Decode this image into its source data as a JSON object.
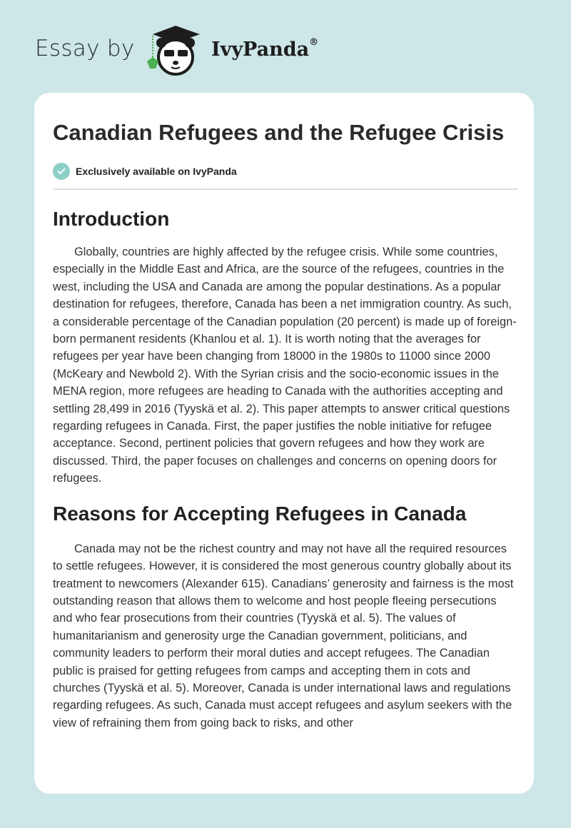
{
  "header": {
    "prefix": "Essay by",
    "brand": "IvyPanda",
    "registered": "®",
    "logo_icon": "panda-graduate-icon"
  },
  "article": {
    "title": "Canadian Refugees and the Refugee Crisis",
    "badge": "Exclusively available on IvyPanda",
    "badge_icon": "check-circle-icon",
    "sections": [
      {
        "heading": "Introduction",
        "text": "Globally, countries are highly affected by the refugee crisis. While some countries, especially in the Middle East and Africa, are the source of the refugees, countries in the west, including the USA and Canada are among the popular destinations. As a popular destination for refugees, therefore, Canada has been a net immigration country. As such, a considerable percentage of the Canadian population (20 percent) is made up of foreign-born permanent residents (Khanlou et al. 1). It is worth noting that the averages for refugees per year have been changing from 18000 in the 1980s to 11000 since 2000 (McKeary and Newbold 2). With the Syrian crisis and the socio-economic issues in the MENA region, more refugees are heading to Canada with the authorities accepting and settling 28,499 in 2016 (Tyyskä et al. 2). This paper attempts to answer critical questions regarding refugees in Canada. First, the paper justifies the noble initiative for refugee acceptance. Second, pertinent policies that govern refugees and how they work are discussed. Third, the paper focuses on challenges and concerns on opening doors for refugees."
      },
      {
        "heading": "Reasons for Accepting Refugees in Canada",
        "text": "Canada may not be the richest country and may not have all the required resources to settle refugees. However, it is considered the most generous country globally about its treatment to newcomers (Alexander 615). Canadians’ generosity and fairness is the most outstanding reason that allows them to welcome and host people fleeing persecutions and who fear prosecutions from their countries (Tyyskä et al. 5). The values of humanitarianism and generosity urge the Canadian government, politicians, and community leaders to perform their moral duties and accept refugees. The Canadian public is praised for getting refugees from camps and accepting them in cots and churches (Tyyskä et al. 5). Moreover, Canada is under international laws and regulations regarding refugees. As such, Canada must accept refugees and asylum seekers with the view of refraining them from going back to risks, and other"
      }
    ]
  },
  "colors": {
    "background": "#cde6e8",
    "badge": "#8dcfc7",
    "ivy_green": "#4caf50"
  }
}
